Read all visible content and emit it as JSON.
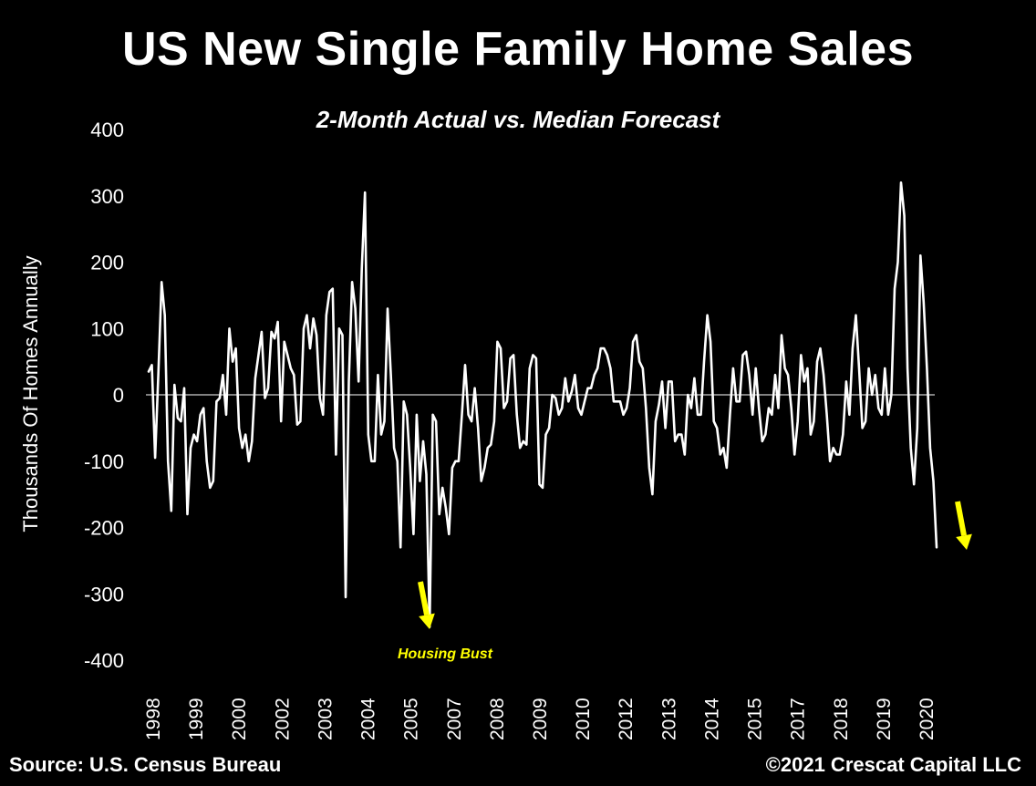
{
  "footer": {
    "source": "Source: U.S. Census Bureau",
    "copyright": "©2021 Crescat Capital LLC"
  },
  "chart_data": {
    "type": "line",
    "title": "US New Single Family Home Sales",
    "subtitle": "2-Month Actual vs. Median Forecast",
    "ylabel": "Thousands Of Homes Annually",
    "xlabel": "",
    "ylim": [
      -400,
      400
    ],
    "yticks": [
      400,
      300,
      200,
      100,
      0,
      -100,
      -200,
      -300,
      -400
    ],
    "xtick_labels": [
      "1998",
      "1999",
      "2000",
      "2002",
      "2003",
      "2004",
      "2005",
      "2007",
      "2008",
      "2009",
      "2010",
      "2012",
      "2013",
      "2014",
      "2015",
      "2017",
      "2018",
      "2019",
      "2020"
    ],
    "grid": false,
    "zero_line": true,
    "colors": {
      "line": "#ffffff",
      "background": "#000000",
      "annotation": "#ffff00"
    },
    "annotations": [
      {
        "text": "Housing Bust",
        "arrow": "down",
        "near": "2006"
      },
      {
        "text": "",
        "arrow": "down",
        "near": "2020"
      }
    ],
    "series": [
      {
        "values": [
          35,
          45,
          -95,
          30,
          170,
          120,
          -100,
          -175,
          15,
          -35,
          -40,
          10,
          -180,
          -80,
          -60,
          -70,
          -30,
          -20,
          -100,
          -140,
          -130,
          -10,
          -5,
          30,
          -30,
          100,
          50,
          70,
          -50,
          -80,
          -60,
          -100,
          -70,
          25,
          60,
          95,
          -5,
          10,
          95,
          85,
          110,
          -40,
          80,
          60,
          40,
          30,
          -45,
          -40,
          100,
          120,
          70,
          115,
          90,
          -5,
          -30,
          120,
          155,
          160,
          -90,
          100,
          90,
          -305,
          20,
          170,
          130,
          20,
          190,
          305,
          -60,
          -100,
          -100,
          30,
          -60,
          -40,
          130,
          30,
          -80,
          -100,
          -230,
          -10,
          -30,
          -110,
          -210,
          -30,
          -130,
          -70,
          -120,
          -350,
          -30,
          -40,
          -180,
          -140,
          -170,
          -210,
          -110,
          -100,
          -100,
          -30,
          45,
          -30,
          -40,
          10,
          -50,
          -130,
          -110,
          -80,
          -75,
          -40,
          80,
          70,
          -20,
          -10,
          55,
          60,
          -30,
          -80,
          -70,
          -75,
          40,
          60,
          55,
          -135,
          -140,
          -60,
          -50,
          0,
          -5,
          -30,
          -20,
          25,
          -10,
          5,
          30,
          -20,
          -30,
          -10,
          10,
          10,
          30,
          40,
          70,
          70,
          60,
          40,
          -10,
          -10,
          -10,
          -30,
          -20,
          10,
          80,
          90,
          50,
          40,
          -20,
          -110,
          -150,
          -40,
          -15,
          20,
          -50,
          20,
          20,
          -70,
          -60,
          -60,
          -90,
          0,
          -20,
          25,
          -30,
          -30,
          50,
          120,
          80,
          -40,
          -50,
          -90,
          -80,
          -110,
          -30,
          40,
          -10,
          -10,
          60,
          65,
          30,
          -30,
          40,
          -20,
          -70,
          -60,
          -20,
          -30,
          30,
          -20,
          90,
          40,
          30,
          -20,
          -90,
          -40,
          60,
          20,
          40,
          -60,
          -40,
          50,
          70,
          30,
          -30,
          -100,
          -80,
          -90,
          -90,
          -60,
          20,
          -30,
          70,
          120,
          40,
          -50,
          -40,
          40,
          0,
          30,
          -20,
          -30,
          40,
          -30,
          0,
          160,
          200,
          320,
          270,
          40,
          -80,
          -135,
          -50,
          210,
          140,
          40,
          -80,
          -130,
          -230
        ]
      }
    ]
  }
}
